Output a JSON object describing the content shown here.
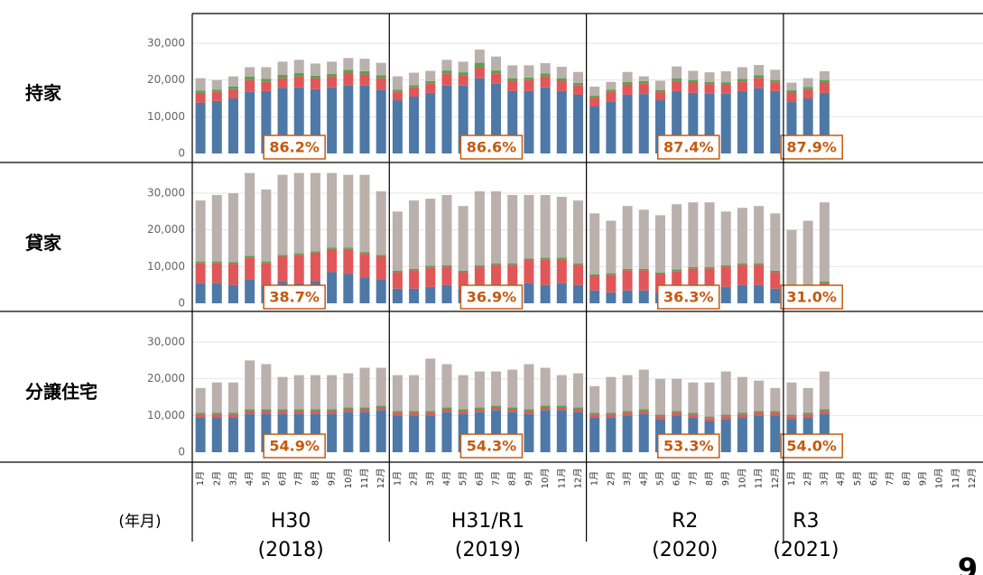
{
  "page_number": "9",
  "x_axis": {
    "label": "(年月)",
    "groups": [
      {
        "name": "H30",
        "year": "(2018)",
        "categories": [
          "1月",
          "2月",
          "3月",
          "4月",
          "5月",
          "6月",
          "7月",
          "8月",
          "9月",
          "10月",
          "11月",
          "12月"
        ]
      },
      {
        "name": "H31/R1",
        "year": "(2019)",
        "categories": [
          "1月",
          "2月",
          "3月",
          "4月",
          "5月",
          "6月",
          "7月",
          "8月",
          "9月",
          "10月",
          "11月",
          "12月"
        ]
      },
      {
        "name": "R2",
        "year": "(2020)",
        "categories": [
          "1月",
          "2月",
          "3月",
          "4月",
          "5月",
          "6月",
          "7月",
          "8月",
          "9月",
          "10月",
          "11月",
          "12月"
        ]
      },
      {
        "name": "R3",
        "year": "(2021)",
        "categories": [
          "1月",
          "2月",
          "3月",
          "4月",
          "5月",
          "6月",
          "7月",
          "8月",
          "9月",
          "10月",
          "11月",
          "12月"
        ]
      }
    ]
  },
  "chart_data": [
    {
      "type": "bar",
      "stacked": true,
      "title": "持家",
      "ylim": [
        0,
        38000
      ],
      "grid": true,
      "yticks": [
        0,
        {
          "value": 10000,
          "label": "10,000"
        },
        {
          "value": 20000,
          "label": "20,000"
        },
        {
          "value": 30000,
          "label": "30,000"
        }
      ],
      "annotations": [
        {
          "value": 86.2,
          "label": "86.2%"
        },
        {
          "value": 86.6,
          "label": "86.6%"
        },
        {
          "value": 87.4,
          "label": "87.4%"
        },
        {
          "value": 87.9,
          "label": "87.9%"
        }
      ],
      "series": [
        {
          "color": "#4e79a7",
          "values": [
            13800,
            14300,
            15000,
            16800,
            17000,
            17900,
            18000,
            17500,
            18000,
            18500,
            18500,
            17300,
            14500,
            15500,
            16500,
            18500,
            18500,
            20500,
            19000,
            17000,
            17000,
            18000,
            17000,
            16000,
            12900,
            14200,
            16000,
            16200,
            14500,
            17000,
            16500,
            16300,
            16300,
            17000,
            17800,
            17000,
            14000,
            15000,
            16500,
            null,
            null,
            null,
            null,
            null,
            null,
            null,
            null,
            null
          ]
        },
        {
          "color": "#e15759",
          "values": [
            2700,
            2500,
            2500,
            3200,
            2500,
            2600,
            3000,
            3000,
            3000,
            3500,
            3000,
            3200,
            2300,
            2500,
            2500,
            3200,
            2800,
            3000,
            2700,
            2800,
            3000,
            3000,
            2800,
            2500,
            2400,
            2600,
            2800,
            2800,
            2200,
            2700,
            2800,
            2600,
            2500,
            2600,
            2800,
            2400,
            2600,
            2500,
            2800,
            null,
            null,
            null,
            null,
            null,
            null,
            null,
            null,
            null
          ]
        },
        {
          "color": "#59a14f",
          "values": [
            600,
            600,
            700,
            900,
            800,
            900,
            900,
            700,
            700,
            800,
            900,
            800,
            600,
            600,
            700,
            900,
            800,
            1200,
            900,
            700,
            700,
            800,
            700,
            700,
            500,
            600,
            700,
            700,
            600,
            700,
            700,
            600,
            600,
            700,
            700,
            600,
            600,
            600,
            700,
            null,
            null,
            null,
            null,
            null,
            null,
            null,
            null,
            null
          ]
        },
        {
          "color": "#bab0ac",
          "values": [
            3400,
            2600,
            2800,
            2600,
            3200,
            3600,
            3600,
            3300,
            3300,
            3200,
            3400,
            3400,
            3600,
            3400,
            2800,
            2900,
            2900,
            3600,
            3800,
            3500,
            3300,
            2800,
            3100,
            3000,
            2400,
            2100,
            2700,
            1300,
            2500,
            3300,
            2500,
            2600,
            3000,
            3200,
            2800,
            2800,
            2100,
            2400,
            2400,
            null,
            null,
            null,
            null,
            null,
            null,
            null,
            null,
            null
          ]
        }
      ]
    },
    {
      "type": "bar",
      "stacked": true,
      "title": "貸家",
      "ylim": [
        0,
        38000
      ],
      "grid": true,
      "yticks": [
        0,
        {
          "value": 10000,
          "label": "10,000"
        },
        {
          "value": 20000,
          "label": "20,000"
        },
        {
          "value": 30000,
          "label": "30,000"
        }
      ],
      "annotations": [
        {
          "value": 38.7,
          "label": "38.7%"
        },
        {
          "value": 36.9,
          "label": "36.9%"
        },
        {
          "value": 36.3,
          "label": "36.3%"
        },
        {
          "value": 31.0,
          "label": "31.0%"
        }
      ],
      "series": [
        {
          "color": "#4e79a7",
          "values": [
            5500,
            5500,
            5000,
            6500,
            5000,
            6000,
            5500,
            6000,
            8500,
            8000,
            7000,
            6500,
            4000,
            4000,
            4500,
            5000,
            4000,
            4500,
            5000,
            5000,
            5500,
            5000,
            5500,
            5000,
            3500,
            3000,
            3500,
            3500,
            3000,
            3500,
            3500,
            3500,
            4500,
            5000,
            5000,
            4000,
            2500,
            2500,
            3000,
            null,
            null,
            null,
            null,
            null,
            null,
            null,
            null,
            null
          ]
        },
        {
          "color": "#e15759",
          "values": [
            5500,
            5500,
            5800,
            6000,
            6000,
            6800,
            7700,
            7800,
            6300,
            6800,
            6500,
            6300,
            4500,
            5000,
            5300,
            5000,
            4500,
            5500,
            5500,
            5500,
            6300,
            7000,
            6500,
            5500,
            4000,
            4800,
            5500,
            5500,
            5000,
            5300,
            6000,
            6000,
            5500,
            5500,
            5500,
            4500,
            2000,
            2000,
            2500,
            null,
            null,
            null,
            null,
            null,
            null,
            null,
            null,
            null
          ]
        },
        {
          "color": "#59a14f",
          "values": [
            400,
            400,
            400,
            400,
            400,
            400,
            400,
            400,
            400,
            400,
            400,
            400,
            400,
            400,
            400,
            400,
            400,
            400,
            400,
            400,
            400,
            400,
            400,
            400,
            400,
            400,
            400,
            400,
            400,
            400,
            400,
            400,
            400,
            400,
            400,
            400,
            300,
            300,
            400,
            null,
            null,
            null,
            null,
            null,
            null,
            null,
            null,
            null
          ]
        },
        {
          "color": "#bab0ac",
          "values": [
            16600,
            18100,
            18800,
            22600,
            19600,
            21800,
            21900,
            21300,
            20300,
            19800,
            21100,
            17300,
            16100,
            18600,
            18300,
            19100,
            17600,
            20100,
            19600,
            18600,
            17300,
            17100,
            16600,
            17100,
            16600,
            14300,
            17100,
            16100,
            15600,
            17800,
            17600,
            17600,
            14600,
            15100,
            15600,
            15600,
            15200,
            17700,
            21600,
            null,
            null,
            null,
            null,
            null,
            null,
            null,
            null,
            null
          ]
        }
      ]
    },
    {
      "type": "bar",
      "stacked": true,
      "title": "分譲住宅",
      "ylim": [
        0,
        38000
      ],
      "grid": true,
      "yticks": [
        0,
        {
          "value": 10000,
          "label": "10,000"
        },
        {
          "value": 20000,
          "label": "20,000"
        },
        {
          "value": 30000,
          "label": "30,000"
        }
      ],
      "annotations": [
        {
          "value": 54.9,
          "label": "54.9%"
        },
        {
          "value": 54.3,
          "label": "54.3%"
        },
        {
          "value": 53.3,
          "label": "53.3%"
        },
        {
          "value": 54.0,
          "label": "54.0%"
        }
      ],
      "series": [
        {
          "color": "#4e79a7",
          "values": [
            9500,
            9500,
            9500,
            10500,
            10500,
            10500,
            10500,
            10500,
            10500,
            11000,
            11000,
            11500,
            10000,
            10000,
            10000,
            11000,
            10500,
            11000,
            11500,
            11000,
            10500,
            11500,
            11500,
            11000,
            9500,
            9500,
            10000,
            10500,
            9000,
            10000,
            9500,
            8500,
            9000,
            9500,
            10000,
            10000,
            9000,
            9500,
            10500,
            null,
            null,
            null,
            null,
            null,
            null,
            null,
            null,
            null
          ]
        },
        {
          "color": "#e15759",
          "values": [
            800,
            800,
            800,
            800,
            800,
            800,
            800,
            800,
            800,
            800,
            800,
            800,
            800,
            800,
            800,
            800,
            800,
            800,
            800,
            800,
            800,
            800,
            800,
            800,
            800,
            800,
            800,
            800,
            800,
            800,
            800,
            800,
            800,
            800,
            800,
            800,
            800,
            800,
            800,
            null,
            null,
            null,
            null,
            null,
            null,
            null,
            null,
            null
          ]
        },
        {
          "color": "#59a14f",
          "values": [
            400,
            400,
            400,
            400,
            400,
            400,
            400,
            400,
            400,
            400,
            400,
            400,
            400,
            400,
            400,
            400,
            400,
            400,
            400,
            400,
            400,
            400,
            400,
            400,
            400,
            400,
            400,
            400,
            400,
            400,
            400,
            400,
            400,
            400,
            400,
            400,
            400,
            400,
            400,
            null,
            null,
            null,
            null,
            null,
            null,
            null,
            null,
            null
          ]
        },
        {
          "color": "#bab0ac",
          "values": [
            6800,
            8300,
            8300,
            13300,
            12300,
            8800,
            9300,
            9300,
            9300,
            9300,
            10800,
            10300,
            9800,
            9800,
            14300,
            11800,
            9300,
            9800,
            9300,
            10300,
            12300,
            10300,
            8300,
            9300,
            7300,
            9800,
            9800,
            10800,
            9800,
            8800,
            8300,
            9300,
            11800,
            9800,
            8300,
            6300,
            8800,
            6800,
            10300,
            null,
            null,
            null,
            null,
            null,
            null,
            null,
            null,
            null
          ]
        }
      ]
    }
  ]
}
